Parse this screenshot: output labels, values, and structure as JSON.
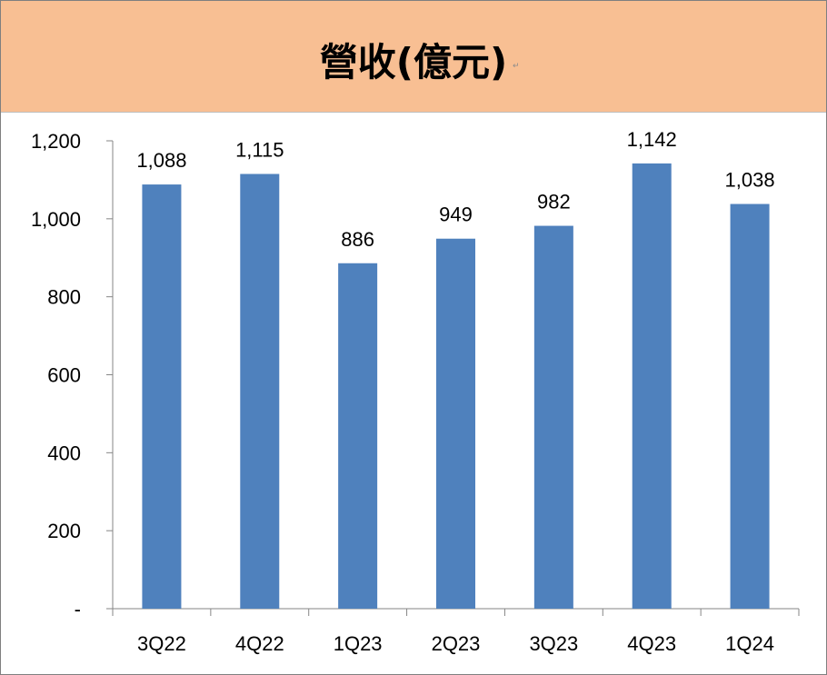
{
  "title": "營收(億元)",
  "title_mark": "↵",
  "chart_data": {
    "type": "bar",
    "title": "營收(億元)",
    "xlabel": "",
    "ylabel": "",
    "categories": [
      "3Q22",
      "4Q22",
      "1Q23",
      "2Q23",
      "3Q23",
      "4Q23",
      "1Q24"
    ],
    "values": [
      1088,
      1115,
      886,
      949,
      982,
      1142,
      1038
    ],
    "data_labels": [
      "1,088",
      "1,115",
      "886",
      "949",
      "982",
      "1,142",
      "1,038"
    ],
    "ylim": [
      0,
      1200
    ],
    "y_ticks": [
      0,
      200,
      400,
      600,
      800,
      1000,
      1200
    ],
    "y_tick_labels": [
      "-",
      "200",
      "400",
      "600",
      "800",
      "1,000",
      "1,200"
    ],
    "grid": false,
    "legend": "none",
    "bar_color": "#4f81bd"
  }
}
